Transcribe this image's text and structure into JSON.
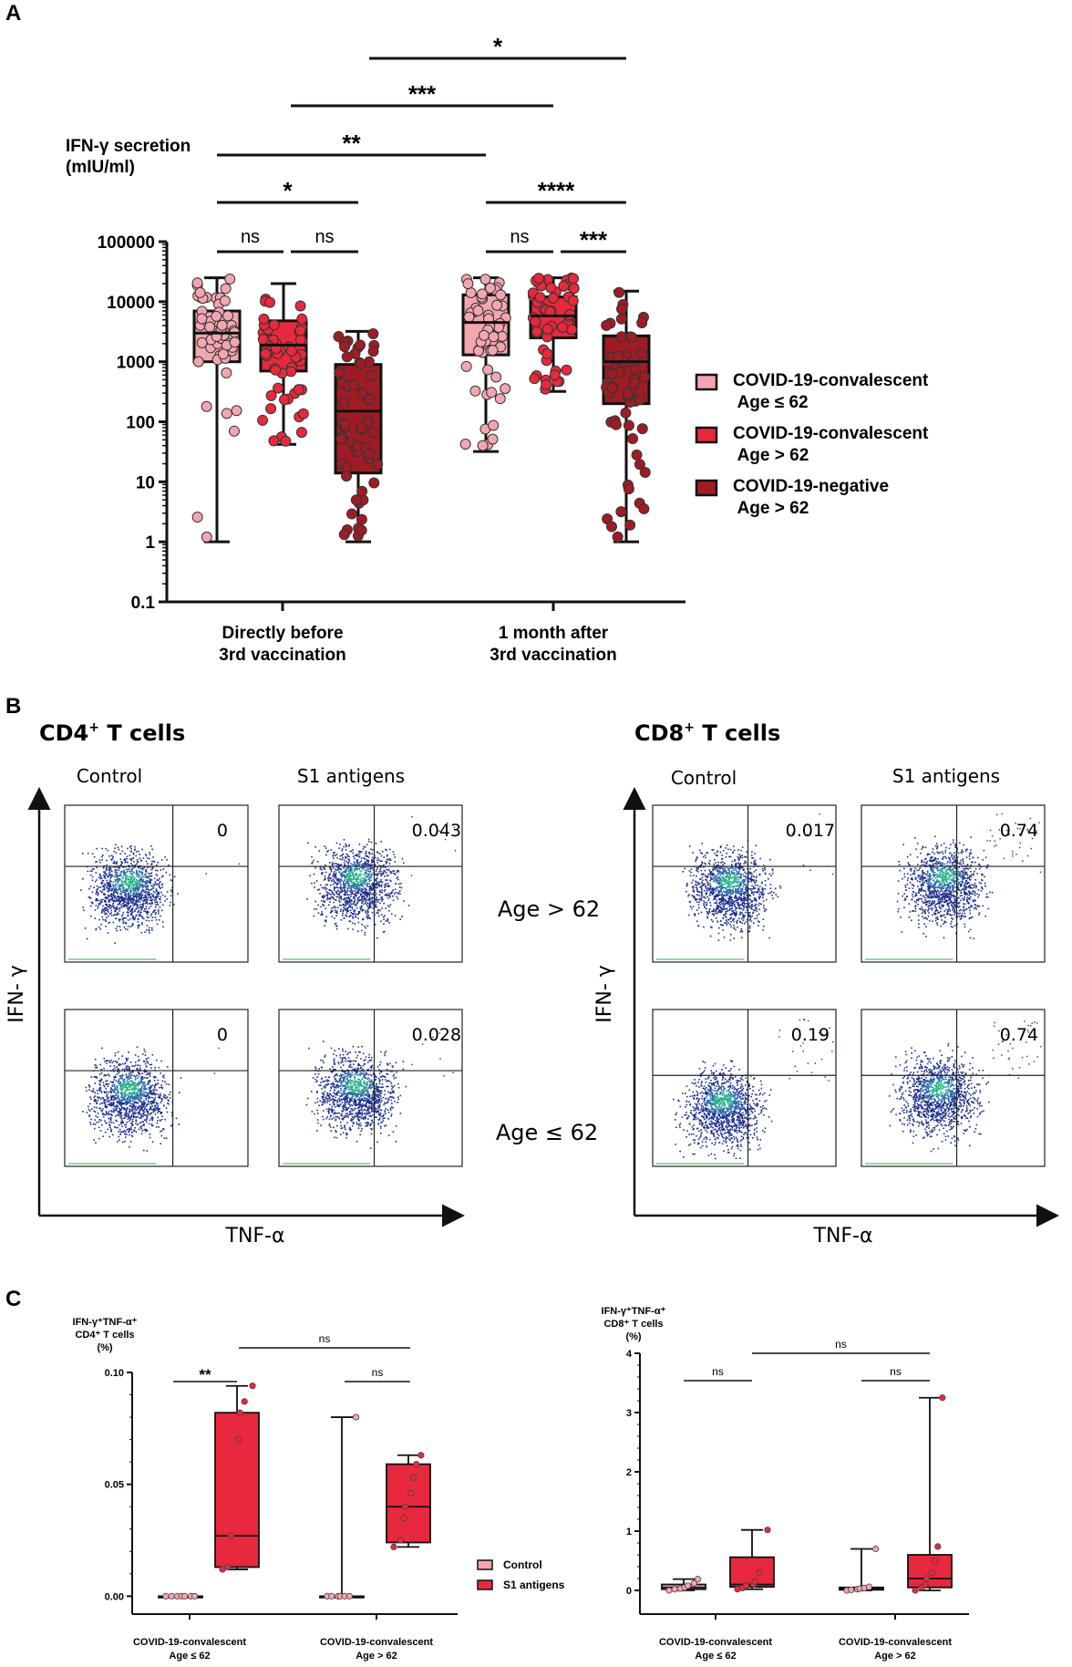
{
  "panel_letters": {
    "a": "A",
    "b": "B",
    "c": "C"
  },
  "colors": {
    "conv_young": "#f4a6b0",
    "conv_old": "#e8283c",
    "negative_old": "#a01c24",
    "control_box": "#f4a6b0",
    "s1_box": "#e8283c"
  },
  "chart_data": [
    {
      "id": "panelA",
      "type": "box",
      "scale": "log",
      "ylabel": "IFN-γ secretion\n(mIU/ml)",
      "yticks": [
        0.1,
        1,
        10,
        100,
        1000,
        10000,
        100000
      ],
      "ytick_labels": [
        "0.1",
        "1",
        "10",
        "100",
        "1000",
        "10000",
        "100000"
      ],
      "ylim": [
        0.1,
        100000
      ],
      "groups": [
        {
          "label": "Directly before\n3rd vaccination"
        },
        {
          "label": "1 month after\n3rd vaccination"
        }
      ],
      "series": [
        {
          "name": "COVID-19-convalescent\n Age ≤ 62",
          "color": "#f4a6b0",
          "boxes": [
            {
              "group": 0,
              "min": 1,
              "q1": 1000,
              "median": 3000,
              "q3": 7000,
              "max": 25000
            },
            {
              "group": 1,
              "min": 32,
              "q1": 1300,
              "median": 4500,
              "q3": 13000,
              "max": 25000
            }
          ]
        },
        {
          "name": "COVID-19-convalescent\n Age > 62",
          "color": "#e8283c",
          "boxes": [
            {
              "group": 0,
              "min": 42,
              "q1": 700,
              "median": 1900,
              "q3": 4800,
              "max": 20000
            },
            {
              "group": 1,
              "min": 320,
              "q1": 2500,
              "median": 5800,
              "q3": 12000,
              "max": 25000
            }
          ]
        },
        {
          "name": "COVID-19-negative\n Age > 62",
          "color": "#a01c24",
          "boxes": [
            {
              "group": 0,
              "min": 1,
              "q1": 14,
              "median": 150,
              "q3": 900,
              "max": 3200
            },
            {
              "group": 1,
              "min": 1,
              "q1": 200,
              "median": 1000,
              "q3": 2700,
              "max": 15000
            }
          ]
        }
      ],
      "significance": [
        {
          "label": "ns"
        },
        {
          "label": "ns"
        },
        {
          "label": "*"
        },
        {
          "label": "**"
        },
        {
          "label": "***"
        },
        {
          "label": "*"
        },
        {
          "label": "ns"
        },
        {
          "label": "***"
        },
        {
          "label": "****"
        }
      ]
    },
    {
      "id": "panelC_CD4",
      "type": "box",
      "ylabel": [
        "IFN-γ⁺TNF-α⁺",
        "CD4⁺ T cells",
        "(%)"
      ],
      "yticks": [
        0.0,
        0.05,
        0.1
      ],
      "ytick_labels": [
        "0.00",
        "0.05",
        "0.10"
      ],
      "ylim": [
        -0.008,
        0.1
      ],
      "groups": [
        {
          "label": "COVID-19-convalescent\nAge ≤ 62"
        },
        {
          "label": "COVID-19-convalescent\nAge > 62"
        }
      ],
      "series": [
        {
          "name": "Control",
          "color": "#f4a6b0",
          "boxes": [
            {
              "group": 0,
              "min": 0,
              "q1": 0,
              "median": 0,
              "q3": 0,
              "max": 0,
              "points": [
                0,
                0,
                0,
                0,
                0,
                0,
                0
              ]
            },
            {
              "group": 1,
              "min": 0,
              "q1": 0,
              "median": 0,
              "q3": 0,
              "max": 0.08,
              "points": [
                0,
                0,
                0,
                0,
                0,
                0,
                0.08
              ]
            }
          ]
        },
        {
          "name": "S1 antigens",
          "color": "#e8283c",
          "boxes": [
            {
              "group": 0,
              "min": 0.012,
              "q1": 0.013,
              "median": 0.027,
              "q3": 0.082,
              "max": 0.094,
              "points": [
                0.012,
                0.013,
                0.027,
                0.07,
                0.082,
                0.087,
                0.094
              ]
            },
            {
              "group": 1,
              "min": 0.022,
              "q1": 0.024,
              "median": 0.04,
              "q3": 0.059,
              "max": 0.063,
              "points": [
                0.022,
                0.025,
                0.035,
                0.04,
                0.046,
                0.053,
                0.059,
                0.063
              ]
            }
          ]
        }
      ],
      "significance": [
        {
          "label": "**"
        },
        {
          "label": "ns"
        },
        {
          "label": "ns"
        }
      ],
      "legend": [
        "Control",
        "S1 antigens"
      ]
    },
    {
      "id": "panelC_CD8",
      "type": "box",
      "ylabel": [
        "IFN-γ⁺TNF-α⁺",
        "CD8⁺ T cells",
        "(%)"
      ],
      "yticks": [
        0,
        1,
        2,
        3,
        4
      ],
      "ytick_labels": [
        "0",
        "1",
        "2",
        "3",
        "4"
      ],
      "ylim": [
        -0.4,
        4
      ],
      "groups": [
        {
          "label": "COVID-19-convalescent\nAge ≤ 62"
        },
        {
          "label": "COVID-19-convalescent\nAge > 62"
        }
      ],
      "series": [
        {
          "name": "Control",
          "color": "#f4a6b0",
          "boxes": [
            {
              "group": 0,
              "min": 0.0,
              "q1": 0.02,
              "median": 0.05,
              "q3": 0.1,
              "max": 0.19,
              "points": [
                0.0,
                0.02,
                0.03,
                0.05,
                0.08,
                0.12,
                0.19
              ]
            },
            {
              "group": 1,
              "min": 0.0,
              "q1": 0.01,
              "median": 0.03,
              "q3": 0.05,
              "max": 0.7,
              "points": [
                0.0,
                0.01,
                0.02,
                0.03,
                0.04,
                0.06,
                0.7
              ]
            }
          ]
        },
        {
          "name": "S1 antigens",
          "color": "#e8283c",
          "boxes": [
            {
              "group": 0,
              "min": 0.02,
              "q1": 0.06,
              "median": 0.1,
              "q3": 0.56,
              "max": 1.02,
              "points": [
                0.02,
                0.04,
                0.08,
                0.1,
                0.15,
                0.3,
                1.02
              ]
            },
            {
              "group": 1,
              "min": 0.0,
              "q1": 0.05,
              "median": 0.2,
              "q3": 0.6,
              "max": 3.25,
              "points": [
                0.0,
                0.05,
                0.1,
                0.2,
                0.3,
                0.5,
                0.74,
                3.25
              ]
            }
          ]
        }
      ],
      "significance": [
        {
          "label": "ns"
        },
        {
          "label": "ns"
        },
        {
          "label": "ns"
        }
      ]
    }
  ],
  "panelB": {
    "cd4_title": "CD4",
    "cd4_sup": "+",
    "cd4_suffix": " T cells",
    "cd8_title": "CD8",
    "cd8_sup": "+",
    "cd8_suffix": " T cells",
    "col_labels": [
      "Control",
      "S1 antigens"
    ],
    "row_labels": [
      "Age > 62",
      "Age ≤ 62"
    ],
    "y_axis": "IFN- γ",
    "x_axis": "TNF-α",
    "cd4_values": [
      [
        "0",
        "0.043"
      ],
      [
        "0",
        "0.028"
      ]
    ],
    "cd8_values": [
      [
        "0.017",
        "0.74"
      ],
      [
        "0.19",
        "0.74"
      ]
    ]
  }
}
